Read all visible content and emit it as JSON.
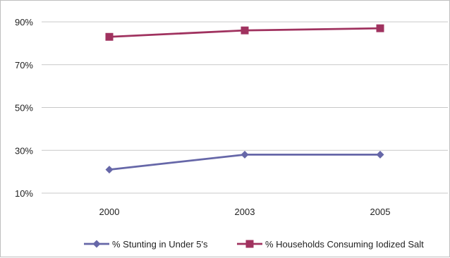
{
  "chart_data": {
    "type": "line",
    "title": "",
    "xlabel": "",
    "ylabel": "",
    "categories": [
      "2000",
      "2003",
      "2005"
    ],
    "y_ticks": [
      "90%",
      "70%",
      "50%",
      "30%",
      "10%"
    ],
    "ylim": [
      10,
      90
    ],
    "y_unit": "%",
    "grid": "horizontal",
    "legend_position": "bottom",
    "series": [
      {
        "name": "% Stunting in Under 5's",
        "values": [
          21,
          28,
          28
        ],
        "color": "#6667a8",
        "marker": "diamond"
      },
      {
        "name": "% Households Consuming Iodized Salt",
        "values": [
          83,
          86,
          87
        ],
        "color": "#a0325f",
        "marker": "square"
      }
    ]
  }
}
